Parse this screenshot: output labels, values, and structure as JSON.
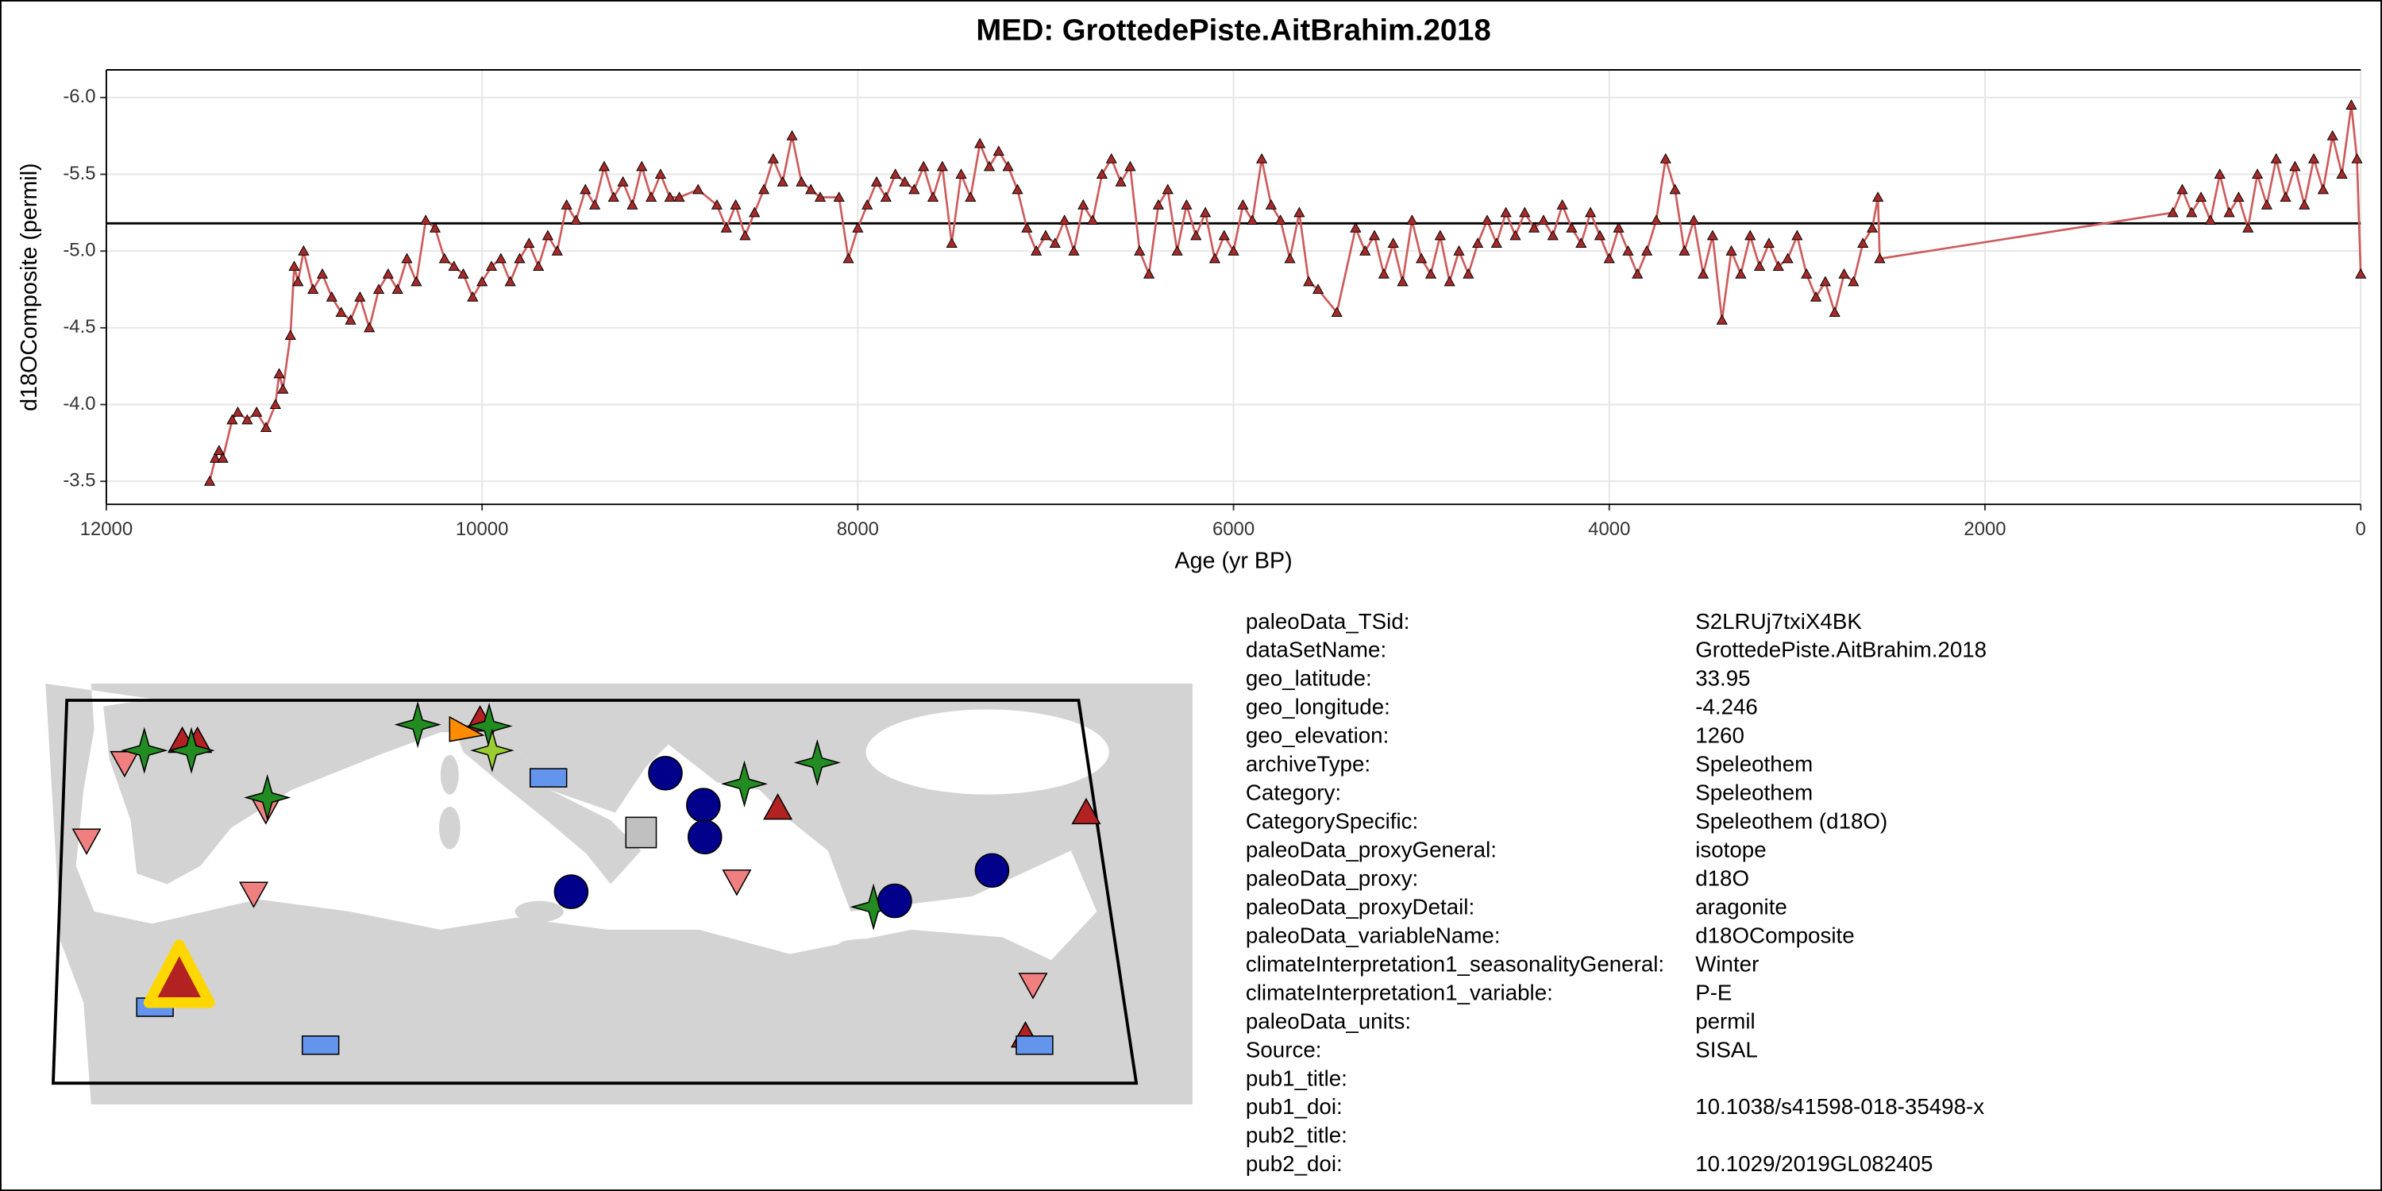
{
  "chart_data": {
    "type": "line",
    "title": "MED: GrottedePiste.AitBrahim.2018",
    "xlabel": "Age (yr BP)",
    "ylabel": "d18OComposite (permil)",
    "xlim": [
      12000,
      0
    ],
    "ylim": [
      -3.35,
      -6.18
    ],
    "xticks": [
      12000,
      10000,
      8000,
      6000,
      4000,
      2000,
      0
    ],
    "yticks": [
      {
        "value": -6,
        "label": "-6.0"
      },
      -5.5,
      {
        "value": -5,
        "label": "-5.0"
      },
      -4.5,
      {
        "value": -4,
        "label": "-4.0"
      },
      -3.5
    ],
    "grid": true,
    "color": "#cd5c5c",
    "marker_color": "#a52a2a",
    "hline": -5.18,
    "x": [
      11450,
      11420,
      11400,
      11380,
      11330,
      11300,
      11250,
      11200,
      11150,
      11100,
      11080,
      11060,
      11020,
      11000,
      10980,
      10950,
      10900,
      10850,
      10800,
      10750,
      10700,
      10650,
      10600,
      10550,
      10500,
      10450,
      10400,
      10350,
      10300,
      10250,
      10200,
      10150,
      10100,
      10050,
      10000,
      9950,
      9900,
      9850,
      9800,
      9750,
      9700,
      9650,
      9600,
      9550,
      9500,
      9450,
      9400,
      9350,
      9300,
      9250,
      9200,
      9150,
      9100,
      9050,
      9000,
      8950,
      8850,
      8750,
      8700,
      8650,
      8600,
      8550,
      8500,
      8450,
      8400,
      8350,
      8300,
      8250,
      8200,
      8100,
      8050,
      8000,
      7950,
      7900,
      7850,
      7800,
      7750,
      7700,
      7650,
      7600,
      7550,
      7500,
      7450,
      7400,
      7350,
      7300,
      7250,
      7200,
      7150,
      7100,
      7050,
      7000,
      6950,
      6900,
      6850,
      6800,
      6750,
      6700,
      6650,
      6600,
      6550,
      6500,
      6450,
      6400,
      6350,
      6300,
      6250,
      6200,
      6150,
      6100,
      6050,
      6000,
      5950,
      5900,
      5850,
      5800,
      5750,
      5700,
      5650,
      5600,
      5550,
      5450,
      5350,
      5300,
      5250,
      5200,
      5150,
      5100,
      5050,
      5000,
      4950,
      4900,
      4850,
      4800,
      4750,
      4700,
      4650,
      4600,
      4550,
      4500,
      4450,
      4400,
      4350,
      4300,
      4250,
      4200,
      4150,
      4100,
      4050,
      4000,
      3950,
      3900,
      3850,
      3800,
      3750,
      3700,
      3650,
      3600,
      3550,
      3500,
      3450,
      3400,
      3350,
      3300,
      3250,
      3200,
      3150,
      3100,
      3050,
      3000,
      2950,
      2900,
      2850,
      2800,
      2750,
      2700,
      2650,
      2600,
      2570,
      2560,
      1000,
      950,
      900,
      850,
      800,
      750,
      700,
      650,
      600,
      550,
      500,
      450,
      400,
      350,
      300,
      250,
      200,
      150,
      100,
      50,
      20,
      0
    ],
    "values": [
      -3.5,
      -3.65,
      -3.7,
      -3.65,
      -3.9,
      -3.95,
      -3.9,
      -3.95,
      -3.85,
      -4.0,
      -4.2,
      -4.1,
      -4.45,
      -4.9,
      -4.8,
      -5.0,
      -4.75,
      -4.85,
      -4.7,
      -4.6,
      -4.55,
      -4.7,
      -4.5,
      -4.75,
      -4.85,
      -4.75,
      -4.95,
      -4.8,
      -5.2,
      -5.15,
      -4.95,
      -4.9,
      -4.85,
      -4.7,
      -4.8,
      -4.9,
      -4.95,
      -4.8,
      -4.95,
      -5.05,
      -4.9,
      -5.1,
      -5.0,
      -5.3,
      -5.2,
      -5.4,
      -5.3,
      -5.55,
      -5.35,
      -5.45,
      -5.3,
      -5.55,
      -5.35,
      -5.5,
      -5.35,
      -5.35,
      -5.4,
      -5.3,
      -5.15,
      -5.3,
      -5.1,
      -5.25,
      -5.4,
      -5.6,
      -5.45,
      -5.75,
      -5.45,
      -5.4,
      -5.35,
      -5.35,
      -4.95,
      -5.15,
      -5.3,
      -5.45,
      -5.35,
      -5.5,
      -5.45,
      -5.4,
      -5.55,
      -5.35,
      -5.55,
      -5.05,
      -5.5,
      -5.35,
      -5.7,
      -5.55,
      -5.65,
      -5.55,
      -5.4,
      -5.15,
      -5.0,
      -5.1,
      -5.05,
      -5.2,
      -5.0,
      -5.3,
      -5.2,
      -5.5,
      -5.6,
      -5.45,
      -5.55,
      -5.0,
      -4.85,
      -5.3,
      -5.4,
      -5.0,
      -5.3,
      -5.1,
      -5.25,
      -4.95,
      -5.1,
      -5.0,
      -5.3,
      -5.2,
      -5.6,
      -5.3,
      -5.2,
      -4.95,
      -5.25,
      -4.8,
      -4.75,
      -4.6,
      -5.15,
      -5.0,
      -5.1,
      -4.85,
      -5.05,
      -4.8,
      -5.2,
      -4.95,
      -4.85,
      -5.1,
      -4.8,
      -5.0,
      -4.85,
      -5.05,
      -5.2,
      -5.05,
      -5.25,
      -5.1,
      -5.25,
      -5.15,
      -5.2,
      -5.1,
      -5.3,
      -5.15,
      -5.05,
      -5.25,
      -5.1,
      -4.95,
      -5.15,
      -5.0,
      -4.85,
      -5.0,
      -5.2,
      -5.6,
      -5.4,
      -5.0,
      -5.2,
      -4.85,
      -5.1,
      -4.55,
      -5.0,
      -4.85,
      -5.1,
      -4.9,
      -5.05,
      -4.9,
      -4.95,
      -5.1,
      -4.85,
      -4.7,
      -4.8,
      -4.6,
      -4.85,
      -4.8,
      -5.05,
      -5.15,
      -5.35,
      -4.95,
      -5.25,
      -5.4,
      -5.25,
      -5.35,
      -5.2,
      -5.5,
      -5.25,
      -5.35,
      -5.15,
      -5.5,
      -5.3,
      -5.6,
      -5.35,
      -5.55,
      -5.3,
      -5.6,
      -5.4,
      -5.75,
      -5.5,
      -5.95,
      -5.6,
      -4.85
    ]
  },
  "metadata": {
    "rows": [
      [
        "paleoData_TSid:",
        "S2LRUj7txiX4BK"
      ],
      [
        "dataSetName:",
        "GrottedePiste.AitBrahim.2018"
      ],
      [
        "geo_latitude:",
        "33.95"
      ],
      [
        "geo_longitude:",
        "-4.246"
      ],
      [
        "geo_elevation:",
        "1260"
      ],
      [
        "archiveType:",
        "Speleothem"
      ],
      [
        "Category:",
        "Speleothem"
      ],
      [
        "CategorySpecific:",
        "Speleothem (d18O)"
      ],
      [
        "paleoData_proxyGeneral:",
        "isotope"
      ],
      [
        "paleoData_proxy:",
        "d18O"
      ],
      [
        "paleoData_proxyDetail:",
        "aragonite"
      ],
      [
        "paleoData_variableName:",
        "d18OComposite"
      ],
      [
        "climateInterpretation1_seasonalityGeneral:",
        "Winter"
      ],
      [
        "climateInterpretation1_variable:",
        "P-E"
      ],
      [
        "paleoData_units:",
        "permil"
      ],
      [
        "Source:",
        "SISAL"
      ],
      [
        "pub1_title:"
      ],
      [
        "pub1_doi:",
        "10.1038/s41598-018-35498-x"
      ],
      [
        "pub2_title:"
      ],
      [
        "pub2_doi:",
        "10.1029/2019GL082405"
      ]
    ]
  }
}
